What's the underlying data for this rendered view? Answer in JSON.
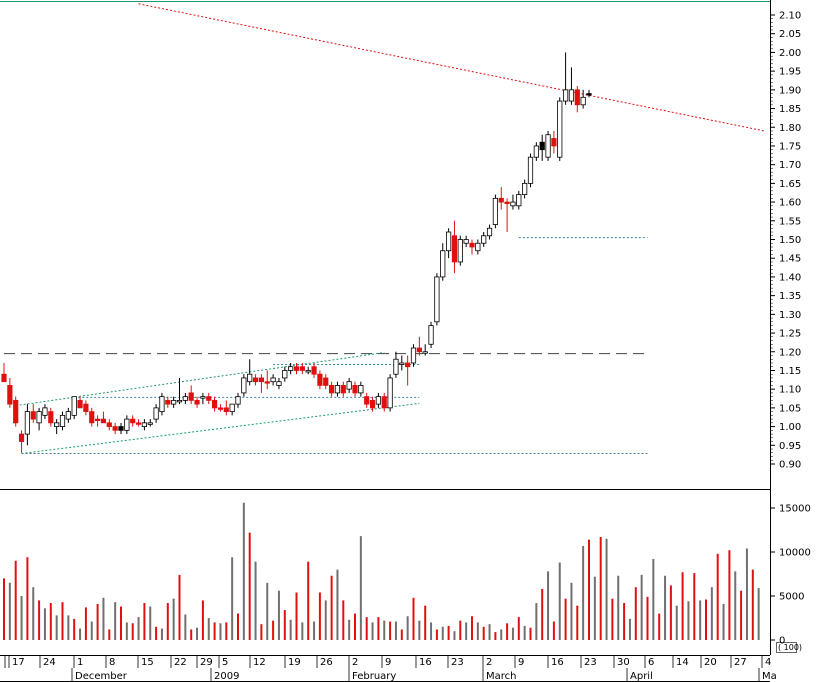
{
  "chart_data": [
    {
      "type": "candlestick",
      "panel": "price",
      "title": "",
      "ylim": [
        0.86,
        2.13
      ],
      "y_ticks": [
        "2.10",
        "2.05",
        "2.00",
        "1.95",
        "1.90",
        "1.85",
        "1.80",
        "1.75",
        "1.70",
        "1.65",
        "1.60",
        "1.55",
        "1.50",
        "1.45",
        "1.40",
        "1.35",
        "1.30",
        "1.25",
        "1.20",
        "1.15",
        "1.10",
        "1.05",
        "1.00",
        "0.95",
        "0.90"
      ],
      "grid": false,
      "candles": [
        {
          "o": 1.14,
          "h": 1.17,
          "l": 1.12,
          "c": 1.12,
          "dir": "down"
        },
        {
          "o": 1.11,
          "h": 1.13,
          "l": 1.05,
          "c": 1.06,
          "dir": "down"
        },
        {
          "o": 1.07,
          "h": 1.08,
          "l": 1.0,
          "c": 1.01,
          "dir": "down"
        },
        {
          "o": 0.98,
          "h": 0.99,
          "l": 0.93,
          "c": 0.96,
          "dir": "down"
        },
        {
          "o": 0.98,
          "h": 1.06,
          "l": 0.95,
          "c": 1.04,
          "dir": "up"
        },
        {
          "o": 1.04,
          "h": 1.06,
          "l": 1.01,
          "c": 1.02,
          "dir": "down"
        },
        {
          "o": 1.01,
          "h": 1.05,
          "l": 0.99,
          "c": 1.04,
          "dir": "up"
        },
        {
          "o": 1.03,
          "h": 1.06,
          "l": 1.02,
          "c": 1.05,
          "dir": "up"
        },
        {
          "o": 1.04,
          "h": 1.05,
          "l": 1.0,
          "c": 1.01,
          "dir": "down"
        },
        {
          "o": 1.0,
          "h": 1.02,
          "l": 0.98,
          "c": 1.01,
          "dir": "up"
        },
        {
          "o": 1.0,
          "h": 1.04,
          "l": 0.99,
          "c": 1.03,
          "dir": "up"
        },
        {
          "o": 1.02,
          "h": 1.05,
          "l": 1.01,
          "c": 1.04,
          "dir": "up"
        },
        {
          "o": 1.03,
          "h": 1.08,
          "l": 1.02,
          "c": 1.08,
          "dir": "up"
        },
        {
          "o": 1.07,
          "h": 1.08,
          "l": 1.05,
          "c": 1.05,
          "dir": "down"
        },
        {
          "o": 1.06,
          "h": 1.07,
          "l": 1.03,
          "c": 1.04,
          "dir": "down"
        },
        {
          "o": 1.04,
          "h": 1.05,
          "l": 1.0,
          "c": 1.01,
          "dir": "down"
        },
        {
          "o": 1.02,
          "h": 1.03,
          "l": 1.0,
          "c": 1.02,
          "dir": "down"
        },
        {
          "o": 1.02,
          "h": 1.04,
          "l": 1.01,
          "c": 1.01,
          "dir": "down"
        },
        {
          "o": 1.01,
          "h": 1.02,
          "l": 0.99,
          "c": 1.0,
          "dir": "down"
        },
        {
          "o": 1.0,
          "h": 1.01,
          "l": 0.98,
          "c": 0.99,
          "dir": "down"
        },
        {
          "o": 1.0,
          "h": 1.01,
          "l": 0.98,
          "c": 0.99,
          "dir": "black"
        },
        {
          "o": 0.99,
          "h": 1.03,
          "l": 0.98,
          "c": 1.02,
          "dir": "up"
        },
        {
          "o": 1.02,
          "h": 1.03,
          "l": 1.0,
          "c": 1.01,
          "dir": "down"
        },
        {
          "o": 1.01,
          "h": 1.02,
          "l": 1.0,
          "c": 1.01,
          "dir": "down"
        },
        {
          "o": 1.0,
          "h": 1.02,
          "l": 0.99,
          "c": 1.01,
          "dir": "up"
        },
        {
          "o": 1.01,
          "h": 1.02,
          "l": 1.0,
          "c": 1.01,
          "dir": "up"
        },
        {
          "o": 1.02,
          "h": 1.06,
          "l": 1.01,
          "c": 1.05,
          "dir": "up"
        },
        {
          "o": 1.04,
          "h": 1.09,
          "l": 1.03,
          "c": 1.08,
          "dir": "up"
        },
        {
          "o": 1.07,
          "h": 1.08,
          "l": 1.05,
          "c": 1.06,
          "dir": "down"
        },
        {
          "o": 1.06,
          "h": 1.08,
          "l": 1.05,
          "c": 1.07,
          "dir": "up"
        },
        {
          "o": 1.07,
          "h": 1.13,
          "l": 1.06,
          "c": 1.07,
          "dir": "up"
        },
        {
          "o": 1.07,
          "h": 1.09,
          "l": 1.06,
          "c": 1.08,
          "dir": "up"
        },
        {
          "o": 1.09,
          "h": 1.11,
          "l": 1.06,
          "c": 1.07,
          "dir": "down"
        },
        {
          "o": 1.07,
          "h": 1.08,
          "l": 1.05,
          "c": 1.06,
          "dir": "down"
        },
        {
          "o": 1.08,
          "h": 1.09,
          "l": 1.06,
          "c": 1.08,
          "dir": "up"
        },
        {
          "o": 1.08,
          "h": 1.09,
          "l": 1.06,
          "c": 1.07,
          "dir": "down"
        },
        {
          "o": 1.07,
          "h": 1.08,
          "l": 1.04,
          "c": 1.05,
          "dir": "down"
        },
        {
          "o": 1.05,
          "h": 1.06,
          "l": 1.04,
          "c": 1.05,
          "dir": "down"
        },
        {
          "o": 1.05,
          "h": 1.07,
          "l": 1.03,
          "c": 1.04,
          "dir": "down"
        },
        {
          "o": 1.04,
          "h": 1.06,
          "l": 1.03,
          "c": 1.06,
          "dir": "up"
        },
        {
          "o": 1.06,
          "h": 1.09,
          "l": 1.05,
          "c": 1.08,
          "dir": "up"
        },
        {
          "o": 1.09,
          "h": 1.14,
          "l": 1.08,
          "c": 1.13,
          "dir": "up"
        },
        {
          "o": 1.12,
          "h": 1.18,
          "l": 1.11,
          "c": 1.14,
          "dir": "up"
        },
        {
          "o": 1.13,
          "h": 1.14,
          "l": 1.11,
          "c": 1.12,
          "dir": "down"
        },
        {
          "o": 1.13,
          "h": 1.14,
          "l": 1.09,
          "c": 1.12,
          "dir": "down"
        },
        {
          "o": 1.12,
          "h": 1.15,
          "l": 1.1,
          "c": 1.12,
          "dir": "down"
        },
        {
          "o": 1.12,
          "h": 1.14,
          "l": 1.11,
          "c": 1.13,
          "dir": "up"
        },
        {
          "o": 1.11,
          "h": 1.13,
          "l": 1.1,
          "c": 1.12,
          "dir": "up"
        },
        {
          "o": 1.13,
          "h": 1.16,
          "l": 1.12,
          "c": 1.15,
          "dir": "up"
        },
        {
          "o": 1.15,
          "h": 1.17,
          "l": 1.14,
          "c": 1.16,
          "dir": "up"
        },
        {
          "o": 1.16,
          "h": 1.17,
          "l": 1.14,
          "c": 1.15,
          "dir": "down"
        },
        {
          "o": 1.16,
          "h": 1.17,
          "l": 1.14,
          "c": 1.15,
          "dir": "down"
        },
        {
          "o": 1.15,
          "h": 1.16,
          "l": 1.14,
          "c": 1.15,
          "dir": "up"
        },
        {
          "o": 1.16,
          "h": 1.17,
          "l": 1.13,
          "c": 1.14,
          "dir": "down"
        },
        {
          "o": 1.14,
          "h": 1.15,
          "l": 1.1,
          "c": 1.11,
          "dir": "down"
        },
        {
          "o": 1.11,
          "h": 1.14,
          "l": 1.1,
          "c": 1.13,
          "dir": "down"
        },
        {
          "o": 1.11,
          "h": 1.12,
          "l": 1.08,
          "c": 1.09,
          "dir": "down"
        },
        {
          "o": 1.09,
          "h": 1.12,
          "l": 1.08,
          "c": 1.11,
          "dir": "up"
        },
        {
          "o": 1.11,
          "h": 1.12,
          "l": 1.08,
          "c": 1.09,
          "dir": "down"
        },
        {
          "o": 1.1,
          "h": 1.13,
          "l": 1.09,
          "c": 1.12,
          "dir": "up"
        },
        {
          "o": 1.11,
          "h": 1.12,
          "l": 1.08,
          "c": 1.09,
          "dir": "down"
        },
        {
          "o": 1.09,
          "h": 1.12,
          "l": 1.08,
          "c": 1.11,
          "dir": "up"
        },
        {
          "o": 1.08,
          "h": 1.09,
          "l": 1.05,
          "c": 1.06,
          "dir": "down"
        },
        {
          "o": 1.07,
          "h": 1.08,
          "l": 1.04,
          "c": 1.05,
          "dir": "down"
        },
        {
          "o": 1.06,
          "h": 1.09,
          "l": 1.05,
          "c": 1.08,
          "dir": "up"
        },
        {
          "o": 1.08,
          "h": 1.09,
          "l": 1.04,
          "c": 1.05,
          "dir": "down"
        },
        {
          "o": 1.05,
          "h": 1.14,
          "l": 1.04,
          "c": 1.13,
          "dir": "up"
        },
        {
          "o": 1.14,
          "h": 1.2,
          "l": 1.13,
          "c": 1.18,
          "dir": "up"
        },
        {
          "o": 1.17,
          "h": 1.19,
          "l": 1.15,
          "c": 1.17,
          "dir": "up"
        },
        {
          "o": 1.17,
          "h": 1.19,
          "l": 1.11,
          "c": 1.16,
          "dir": "down"
        },
        {
          "o": 1.17,
          "h": 1.22,
          "l": 1.16,
          "c": 1.21,
          "dir": "up"
        },
        {
          "o": 1.21,
          "h": 1.24,
          "l": 1.19,
          "c": 1.2,
          "dir": "down"
        },
        {
          "o": 1.2,
          "h": 1.22,
          "l": 1.19,
          "c": 1.2,
          "dir": "up"
        },
        {
          "o": 1.22,
          "h": 1.28,
          "l": 1.21,
          "c": 1.27,
          "dir": "up"
        },
        {
          "o": 1.28,
          "h": 1.41,
          "l": 1.27,
          "c": 1.4,
          "dir": "up"
        },
        {
          "o": 1.4,
          "h": 1.49,
          "l": 1.39,
          "c": 1.47,
          "dir": "up"
        },
        {
          "o": 1.47,
          "h": 1.53,
          "l": 1.45,
          "c": 1.52,
          "dir": "up"
        },
        {
          "o": 1.51,
          "h": 1.55,
          "l": 1.41,
          "c": 1.44,
          "dir": "down"
        },
        {
          "o": 1.44,
          "h": 1.51,
          "l": 1.43,
          "c": 1.5,
          "dir": "up"
        },
        {
          "o": 1.49,
          "h": 1.51,
          "l": 1.48,
          "c": 1.5,
          "dir": "up"
        },
        {
          "o": 1.49,
          "h": 1.5,
          "l": 1.46,
          "c": 1.48,
          "dir": "down"
        },
        {
          "o": 1.47,
          "h": 1.5,
          "l": 1.46,
          "c": 1.49,
          "dir": "up"
        },
        {
          "o": 1.49,
          "h": 1.52,
          "l": 1.48,
          "c": 1.51,
          "dir": "up"
        },
        {
          "o": 1.51,
          "h": 1.54,
          "l": 1.5,
          "c": 1.53,
          "dir": "up"
        },
        {
          "o": 1.54,
          "h": 1.62,
          "l": 1.53,
          "c": 1.61,
          "dir": "up"
        },
        {
          "o": 1.61,
          "h": 1.64,
          "l": 1.58,
          "c": 1.6,
          "dir": "down"
        },
        {
          "o": 1.6,
          "h": 1.61,
          "l": 1.52,
          "c": 1.6,
          "dir": "down"
        },
        {
          "o": 1.59,
          "h": 1.62,
          "l": 1.58,
          "c": 1.6,
          "dir": "up"
        },
        {
          "o": 1.59,
          "h": 1.63,
          "l": 1.58,
          "c": 1.62,
          "dir": "up"
        },
        {
          "o": 1.62,
          "h": 1.66,
          "l": 1.61,
          "c": 1.65,
          "dir": "up"
        },
        {
          "o": 1.65,
          "h": 1.73,
          "l": 1.64,
          "c": 1.72,
          "dir": "up"
        },
        {
          "o": 1.72,
          "h": 1.76,
          "l": 1.71,
          "c": 1.75,
          "dir": "up"
        },
        {
          "o": 1.74,
          "h": 1.78,
          "l": 1.71,
          "c": 1.76,
          "dir": "black"
        },
        {
          "o": 1.72,
          "h": 1.79,
          "l": 1.71,
          "c": 1.78,
          "dir": "up"
        },
        {
          "o": 1.77,
          "h": 1.79,
          "l": 1.73,
          "c": 1.75,
          "dir": "down"
        },
        {
          "o": 1.72,
          "h": 1.88,
          "l": 1.71,
          "c": 1.87,
          "dir": "up"
        },
        {
          "o": 1.87,
          "h": 2.0,
          "l": 1.86,
          "c": 1.9,
          "dir": "up"
        },
        {
          "o": 1.87,
          "h": 1.96,
          "l": 1.86,
          "c": 1.9,
          "dir": "up"
        },
        {
          "o": 1.9,
          "h": 1.91,
          "l": 1.84,
          "c": 1.86,
          "dir": "down"
        },
        {
          "o": 1.86,
          "h": 1.9,
          "l": 1.85,
          "c": 1.88,
          "dir": "up"
        },
        {
          "o": 1.89,
          "h": 1.9,
          "l": 1.88,
          "c": 1.89,
          "dir": "black"
        }
      ],
      "lines": [
        {
          "name": "red-downtrend",
          "style": "dotted",
          "color": "#e01010",
          "from": {
            "i": 23,
            "y": 2.13
          },
          "to": {
            "i": 130,
            "y": 1.79
          }
        },
        {
          "name": "resistance-1.20",
          "style": "dashed",
          "color": "#444444",
          "from": {
            "i": 0,
            "y": 1.195
          },
          "to": {
            "i": 110,
            "y": 1.195
          }
        },
        {
          "name": "support-0.93",
          "style": "dotted",
          "color": "#4a7a8a",
          "from": {
            "i": 3,
            "y": 0.928
          },
          "to": {
            "i": 110,
            "y": 0.928
          }
        },
        {
          "name": "level-1.505",
          "style": "dotted",
          "color": "#3a8aa0",
          "from": {
            "i": 88,
            "y": 1.505
          },
          "to": {
            "i": 110,
            "y": 1.505
          }
        },
        {
          "name": "level-1.165",
          "style": "dotted",
          "color": "#3a8aa0",
          "from": {
            "i": 46,
            "y": 1.166
          },
          "to": {
            "i": 71,
            "y": 1.166
          }
        },
        {
          "name": "level-1.078",
          "style": "dotted",
          "color": "#3a8aa0",
          "from": {
            "i": 12,
            "y": 1.078
          },
          "to": {
            "i": 71,
            "y": 1.078
          }
        },
        {
          "name": "channel-upper",
          "style": "dotted",
          "color": "#1a9a6a",
          "from": {
            "i": 2,
            "y": 1.056
          },
          "to": {
            "i": 65,
            "y": 1.198
          }
        },
        {
          "name": "channel-lower",
          "style": "dotted",
          "color": "#1a9a6a",
          "from": {
            "i": 3,
            "y": 0.928
          },
          "to": {
            "i": 71,
            "y": 1.062
          }
        }
      ]
    },
    {
      "type": "bar",
      "panel": "volume",
      "ylim": [
        0,
        16000
      ],
      "y_ticks": [
        "15000",
        "10000",
        "5000",
        "0"
      ],
      "unit_label": "( 100)",
      "values": [
        7000,
        6500,
        9000,
        5000,
        9400,
        6000,
        4500,
        3600,
        4200,
        2800,
        4300,
        2800,
        2400,
        1300,
        3700,
        2100,
        4100,
        4800,
        1200,
        4300,
        3800,
        2000,
        1900,
        2600,
        4200,
        3800,
        1500,
        1300,
        4200,
        4700,
        7400,
        2900,
        1200,
        1400,
        4500,
        2500,
        2000,
        1900,
        2000,
        9400,
        3000,
        15600,
        12200,
        8900,
        1800,
        6500,
        2200,
        5600,
        3400,
        2300,
        5400,
        2000,
        8900,
        2100,
        5400,
        4500,
        7300,
        8000,
        4500,
        2300,
        3000,
        11800,
        2600,
        2000,
        2600,
        2200,
        2100,
        2100,
        1200,
        2700,
        4800,
        2200,
        3900,
        2000,
        1200,
        1500,
        1600,
        1000,
        2200,
        2000,
        2700,
        2000,
        1500,
        1800,
        900,
        1200,
        1900,
        1400,
        2600,
        1600,
        1400,
        4200,
        5800,
        7800,
        2100,
        8800,
        4700,
        6500,
        3900,
        10700,
        11400,
        7200,
        11700,
        11500,
        4700,
        7300,
        4200,
        2400,
        6000,
        7400,
        4900,
        9200,
        3000,
        7300,
        6200,
        3900,
        7700,
        4400,
        7600,
        4500,
        4600,
        6000,
        9800,
        4100,
        10200,
        7800,
        5600,
        10400,
        8000,
        5900
      ]
    }
  ],
  "x_axis": {
    "day_labels": [
      "17",
      "24",
      "1",
      "8",
      "15",
      "22",
      "29",
      "5",
      "12",
      "19",
      "26",
      "2",
      "9",
      "16",
      "23",
      "2",
      "9",
      "16",
      "23",
      "30",
      "6",
      "14",
      "20",
      "27",
      "4"
    ],
    "month_labels": [
      "December",
      "2009",
      "February",
      "March",
      "April",
      "Ma"
    ]
  },
  "colors": {
    "up_candle_fill": "#ffffff",
    "down_candle": "#e01010",
    "black_candle": "#000000",
    "volume_red": "#e01010",
    "volume_gray": "#707070",
    "top_border": "#1a9a6a"
  }
}
